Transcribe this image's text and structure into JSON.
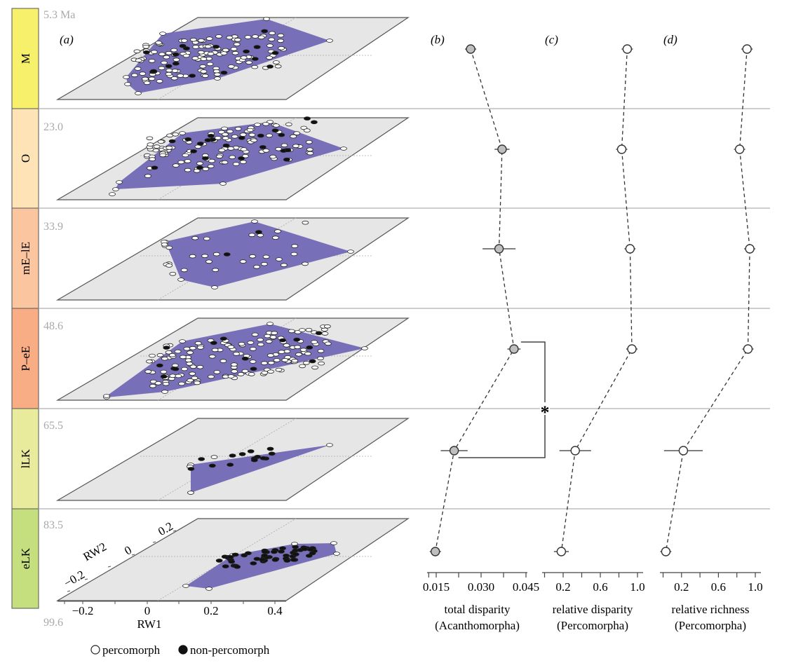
{
  "figure": {
    "panel_labels": {
      "a": "(a)",
      "b": "(b)",
      "c": "(c)",
      "d": "(d)"
    },
    "stages": [
      {
        "name": "M",
        "age_top": "5.3 Ma",
        "color": "#f6f06a"
      },
      {
        "name": "O",
        "age_top": "23.0",
        "color": "#fde3b6"
      },
      {
        "name": "mE–lE",
        "age_top": "33.9",
        "color": "#fbc59f"
      },
      {
        "name": "P–eE",
        "age_top": "48.6",
        "color": "#f8ad84"
      },
      {
        "name": "lLK",
        "age_top": "65.5",
        "color": "#e8eb9c"
      },
      {
        "name": "eLK",
        "age_top": "83.5",
        "color": "#c5df7e"
      }
    ],
    "age_bottom": "99.6",
    "hull_color": "#7168b4",
    "plane_color": "#e6e6e6",
    "morphospace_axes": {
      "x_label": "RW1",
      "x_ticks": [
        "−0.2",
        "0",
        "0.2",
        "0.4"
      ],
      "y_label": "RW2",
      "y_ticks": [
        "−0.2",
        "0",
        "0.2"
      ]
    },
    "legend": {
      "open": "percomorph",
      "filled": "non-percomorph"
    },
    "significance_marker": "*"
  },
  "chart_data": [
    {
      "type": "scatter",
      "panel": "(b)",
      "title": "total disparity (Acanthomorpha)",
      "xlabel": "total disparity",
      "xlabel2": "(Acanthomorpha)",
      "xlim": [
        0.01,
        0.048
      ],
      "xticks": [
        0.0125,
        0.015,
        0.0225,
        0.03,
        0.0375,
        0.045
      ],
      "xtick_labels": [
        "0.015",
        "0.030",
        "0.045"
      ],
      "xtick_label_values": [
        0.015,
        0.03,
        0.045
      ],
      "categories": [
        "M",
        "O",
        "mE–lE",
        "P–eE",
        "lLK",
        "eLK"
      ],
      "values": [
        0.0265,
        0.037,
        0.036,
        0.041,
        0.021,
        0.0147
      ],
      "errors": [
        0.001,
        0.0025,
        0.0055,
        0.0022,
        0.0045,
        0.0012
      ],
      "marker_fill": "#bfbfbf",
      "line_style": "dashed"
    },
    {
      "type": "scatter",
      "panel": "(c)",
      "title": "relative disparity (Percomorpha)",
      "xlabel": "relative disparity",
      "xlabel2": "(Percomorpha)",
      "xlim": [
        -0.02,
        1.1
      ],
      "xticks": [
        0,
        0.2,
        0.4,
        0.6,
        0.8,
        1.0
      ],
      "xtick_labels": [
        "0.2",
        "0.6",
        "1.0"
      ],
      "xtick_label_values": [
        0.2,
        0.6,
        1.0
      ],
      "categories": [
        "M",
        "O",
        "mE–lE",
        "P–eE",
        "lLK",
        "eLK"
      ],
      "values": [
        0.89,
        0.83,
        0.92,
        0.94,
        0.33,
        0.18
      ],
      "errors": [
        0.0,
        0.0,
        0.0,
        0.0,
        0.17,
        0.08
      ],
      "marker_fill": "#ffffff",
      "line_style": "dashed"
    },
    {
      "type": "scatter",
      "panel": "(d)",
      "title": "relative richness (Percomorpha)",
      "xlabel": "relative richness",
      "xlabel2": "(Percomorpha)",
      "xlim": [
        -0.02,
        1.1
      ],
      "xticks": [
        0,
        0.2,
        0.4,
        0.6,
        0.8,
        1.0
      ],
      "xtick_labels": [
        "0.2",
        "0.6",
        "1.0"
      ],
      "xtick_label_values": [
        0.2,
        0.6,
        1.0
      ],
      "categories": [
        "M",
        "O",
        "mE–lE",
        "P–eE",
        "lLK",
        "eLK"
      ],
      "values": [
        0.91,
        0.83,
        0.94,
        0.92,
        0.22,
        0.03
      ],
      "errors": [
        0.0,
        0.04,
        0.06,
        0.0,
        0.21,
        0.0
      ],
      "marker_fill": "#ffffff",
      "line_style": "dashed"
    }
  ]
}
